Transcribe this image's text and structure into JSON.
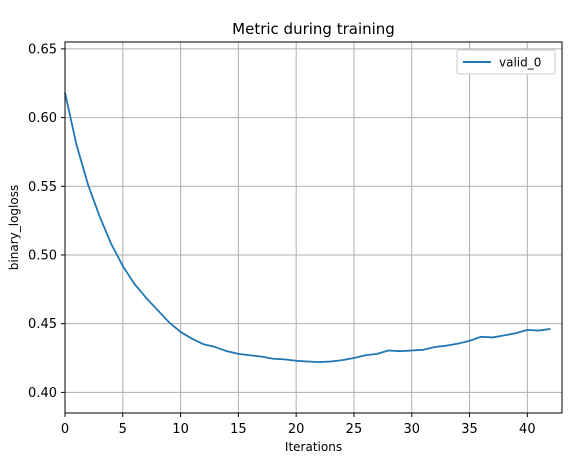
{
  "chart_data": {
    "type": "line",
    "title": "Metric during training",
    "xlabel": "Iterations",
    "ylabel": "binary_logloss",
    "xlim": [
      0,
      43
    ],
    "ylim": [
      0.385,
      0.655
    ],
    "xticks": [
      0,
      5,
      10,
      15,
      20,
      25,
      30,
      35,
      40
    ],
    "yticks": [
      0.4,
      0.45,
      0.5,
      0.55,
      0.6,
      0.65
    ],
    "ytick_labels": [
      "0.40",
      "0.45",
      "0.50",
      "0.55",
      "0.60",
      "0.65"
    ],
    "grid": true,
    "legend_position": "top-right",
    "series": [
      {
        "name": "valid_0",
        "color": "#1f77b4",
        "x": [
          0,
          1,
          2,
          3,
          4,
          5,
          6,
          7,
          8,
          9,
          10,
          11,
          12,
          13,
          14,
          15,
          16,
          17,
          18,
          19,
          20,
          21,
          22,
          23,
          24,
          25,
          26,
          27,
          28,
          29,
          30,
          31,
          32,
          33,
          34,
          35,
          36,
          37,
          38,
          39,
          40,
          41,
          42
        ],
        "y": [
          0.618,
          0.58,
          0.551,
          0.528,
          0.508,
          0.492,
          0.479,
          0.469,
          0.46,
          0.451,
          0.444,
          0.439,
          0.435,
          0.433,
          0.43,
          0.428,
          0.427,
          0.426,
          0.4245,
          0.424,
          0.423,
          0.4225,
          0.422,
          0.4225,
          0.4235,
          0.425,
          0.427,
          0.428,
          0.4305,
          0.43,
          0.4305,
          0.431,
          0.433,
          0.434,
          0.4355,
          0.4375,
          0.4405,
          0.44,
          0.4415,
          0.443,
          0.4455,
          0.445,
          0.4462
        ]
      }
    ]
  }
}
